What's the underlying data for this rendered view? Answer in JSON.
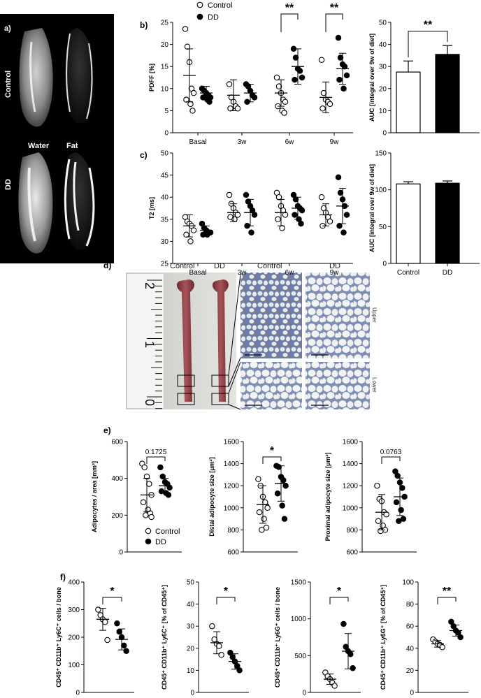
{
  "panel_a": {
    "label": "a)",
    "row_labels": [
      "Control",
      "DD"
    ],
    "column_labels": [
      "Water",
      "Fat"
    ]
  },
  "panel_d": {
    "label": "d)",
    "photo_labels": [
      "Control",
      "DD"
    ],
    "histo_col_labels": [
      "Control",
      "DD"
    ],
    "histo_row_labels": [
      "Upper",
      "Lower"
    ],
    "ruler_labels": [
      "2",
      "1",
      "0"
    ]
  },
  "legend": {
    "series": [
      "Control",
      "DD"
    ]
  },
  "chart_data": [
    {
      "id": "b-left",
      "panel_label": "b)",
      "type": "scatter",
      "ylabel": "PDFF [%]",
      "ylim": [
        0,
        25
      ],
      "yticks": [
        0,
        5,
        10,
        15,
        20,
        25
      ],
      "categories": [
        "Basal",
        "3w",
        "6w",
        "9w"
      ],
      "series": [
        {
          "name": "Control",
          "groups": [
            [
              23.5,
              19.5,
              16,
              10,
              9,
              7.5,
              6.5,
              5
            ],
            [
              11,
              8,
              7,
              6,
              5.5,
              5.5
            ],
            [
              12.5,
              10.5,
              9,
              7.5,
              7,
              6,
              5,
              4.5
            ],
            [
              16.5,
              9,
              7.5,
              7,
              6.5,
              5.5
            ]
          ],
          "means": [
            13,
            8.5,
            9,
            8
          ],
          "sds": [
            6,
            3.5,
            3,
            3.5
          ]
        },
        {
          "name": "DD",
          "groups": [
            [
              10,
              9.5,
              9,
              8.5,
              8,
              8,
              7.5,
              7
            ],
            [
              11,
              10.5,
              9.5,
              8.5,
              8,
              7
            ],
            [
              19,
              17,
              14.5,
              14,
              12.5,
              12
            ],
            [
              21.5,
              17,
              15.5,
              15,
              13,
              12,
              10
            ]
          ],
          "means": [
            9,
            9,
            15,
            14.5
          ],
          "sds": [
            1.5,
            2,
            4,
            3.5
          ]
        }
      ],
      "sig": [
        {
          "cat": 2,
          "text": "**"
        },
        {
          "cat": 3,
          "text": "**"
        }
      ]
    },
    {
      "id": "b-right",
      "type": "bar",
      "ylabel": "AUC [integral over 9w of diet]",
      "ylim": [
        0,
        50
      ],
      "yticks": [
        0,
        10,
        20,
        30,
        40,
        50
      ],
      "categories": [
        "Control",
        "DD"
      ],
      "values": [
        27.5,
        35.5
      ],
      "errors": [
        5,
        4
      ],
      "sig": [
        {
          "text": "**"
        }
      ]
    },
    {
      "id": "c-left",
      "panel_label": "c)",
      "type": "scatter",
      "ylabel": "T2 [ms]",
      "ylim": [
        25,
        50
      ],
      "yticks": [
        25,
        30,
        35,
        40,
        45,
        50
      ],
      "categories": [
        "Basal",
        "3w",
        "6w",
        "9w"
      ],
      "series": [
        {
          "name": "Control",
          "groups": [
            [
              35.5,
              34.5,
              34,
              33.5,
              32.5,
              31.5,
              30
            ],
            [
              40.5,
              38.5,
              37.5,
              36.5,
              36,
              35.5,
              35
            ],
            [
              41,
              40,
              38,
              37,
              36,
              35,
              33
            ],
            [
              40,
              37.5,
              36.5,
              35.5,
              34.5,
              33.5
            ]
          ],
          "means": [
            33.5,
            36.5,
            36.5,
            36
          ],
          "sds": [
            2.5,
            2,
            3,
            2.5
          ]
        },
        {
          "name": "DD",
          "groups": [
            [
              34,
              33,
              32.5,
              32,
              32,
              31.5,
              31.5
            ],
            [
              40.5,
              39,
              38,
              37,
              36,
              33.5,
              32
            ],
            [
              40.5,
              39.5,
              38,
              37.5,
              37,
              36,
              35,
              34
            ],
            [
              44.5,
              41,
              39.5,
              38,
              36,
              33.5,
              32
            ]
          ],
          "means": [
            32.5,
            36.5,
            37.5,
            38
          ],
          "sds": [
            1,
            3,
            2.5,
            4
          ]
        }
      ]
    },
    {
      "id": "c-right",
      "type": "bar",
      "ylabel": "AUC [integral over 9w of diet]",
      "ylim": [
        0,
        150
      ],
      "yticks": [
        0,
        50,
        100,
        150
      ],
      "categories": [
        "Control",
        "DD"
      ],
      "values": [
        108,
        109
      ],
      "errors": [
        3,
        3
      ]
    },
    {
      "id": "e-1",
      "panel_label": "e)",
      "type": "scatter",
      "ylabel": "Adipocytes / area [mm²]",
      "ylim": [
        0,
        600
      ],
      "yticks": [
        0,
        200,
        400,
        600
      ],
      "categories": [
        "Control",
        "DD"
      ],
      "series": [
        {
          "name": "Control",
          "groups": [
            [
              480,
              460,
              410,
              370,
              310,
              270,
              230,
              210,
              200,
              190
            ]
          ],
          "means": [
            310
          ],
          "sds": [
            90
          ]
        },
        {
          "name": "DD",
          "groups": [
            [
              460,
              410,
              380,
              370,
              350,
              330,
              320,
              310
            ]
          ],
          "means": [
            360
          ],
          "sds": [
            40
          ]
        }
      ],
      "pvalue": "0.1725",
      "legend": true
    },
    {
      "id": "e-2",
      "type": "scatter",
      "ylabel": "Distal adipocyte size [μm²]",
      "ylim": [
        600,
        1600
      ],
      "yticks": [
        600,
        800,
        1000,
        1200,
        1400,
        1600
      ],
      "categories": [
        "Control",
        "DD"
      ],
      "series": [
        {
          "name": "Control",
          "groups": [
            [
              1260,
              1200,
              1100,
              1050,
              1000,
              960,
              900,
              820,
              800
            ]
          ],
          "means": [
            1030
          ],
          "sds": [
            170
          ]
        },
        {
          "name": "DD",
          "groups": [
            [
              1380,
              1370,
              1280,
              1250,
              1200,
              1130,
              1020,
              900
            ]
          ],
          "means": [
            1220
          ],
          "sds": [
            160
          ]
        }
      ],
      "pvalue": "*"
    },
    {
      "id": "e-3",
      "type": "scatter",
      "ylabel": "Proximal adipocyte size [μm²]",
      "ylim": [
        600,
        1600
      ],
      "yticks": [
        600,
        800,
        1000,
        1200,
        1400,
        1600
      ],
      "categories": [
        "Control",
        "DD"
      ],
      "series": [
        {
          "name": "Control",
          "groups": [
            [
              1200,
              1080,
              1060,
              960,
              940,
              880,
              840,
              800,
              790
            ]
          ],
          "means": [
            960
          ],
          "sds": [
            160
          ]
        },
        {
          "name": "DD",
          "groups": [
            [
              1330,
              1290,
              1230,
              1180,
              1100,
              1050,
              980,
              900,
              880
            ]
          ],
          "means": [
            1100
          ],
          "sds": [
            170
          ]
        }
      ],
      "pvalue": "0.0763"
    },
    {
      "id": "f-1",
      "panel_label": "f)",
      "type": "scatter",
      "ylabel": "CD45⁺ CD11b⁺ Ly6C⁺ cells / bone",
      "ylim": [
        0,
        400
      ],
      "yticks": [
        0,
        100,
        200,
        300,
        400
      ],
      "categories": [
        "Control",
        "DD"
      ],
      "series": [
        {
          "name": "Control",
          "groups": [
            [
              300,
              280,
              265,
              255,
              190
            ]
          ],
          "means": [
            265
          ],
          "sds": [
            40
          ]
        },
        {
          "name": "DD",
          "groups": [
            [
              250,
              220,
              200,
              170,
              150
            ]
          ],
          "means": [
            192
          ],
          "sds": [
            38
          ]
        }
      ],
      "sig": "*"
    },
    {
      "id": "f-2",
      "type": "scatter",
      "ylabel": "CD45⁺ CD11b⁺ Ly6C⁺ [% of CD45⁺]",
      "ylim": [
        0,
        50
      ],
      "yticks": [
        0,
        10,
        20,
        30,
        40,
        50
      ],
      "categories": [
        "Control",
        "DD"
      ],
      "series": [
        {
          "name": "Control",
          "groups": [
            [
              30,
              24,
              22,
              21,
              17
            ]
          ],
          "means": [
            22.5
          ],
          "sds": [
            5
          ]
        },
        {
          "name": "DD",
          "groups": [
            [
              18,
              16,
              14,
              12,
              10
            ]
          ],
          "means": [
            14
          ],
          "sds": [
            3.5
          ]
        }
      ],
      "sig": "*"
    },
    {
      "id": "f-3",
      "type": "scatter",
      "ylabel": "CD45⁺ CD11b⁺ Ly6G⁺ cells / bone",
      "ylim": [
        0,
        1500
      ],
      "yticks": [
        0,
        500,
        1000,
        1500
      ],
      "categories": [
        "Control",
        "DD"
      ],
      "series": [
        {
          "name": "Control",
          "groups": [
            [
              270,
              220,
              180,
              130,
              90
            ]
          ],
          "means": [
            180
          ],
          "sds": [
            70
          ]
        },
        {
          "name": "DD",
          "groups": [
            [
              930,
              620,
              560,
              520,
              330
            ]
          ],
          "means": [
            560
          ],
          "sds": [
            240
          ]
        }
      ],
      "sig": "*"
    },
    {
      "id": "f-4",
      "type": "scatter",
      "ylabel": "CD45⁺ CD11b⁺ Ly6G⁺ [% of CD45⁺]",
      "ylim": [
        0,
        100
      ],
      "yticks": [
        0,
        20,
        40,
        60,
        80,
        100
      ],
      "categories": [
        "Control",
        "DD"
      ],
      "series": [
        {
          "name": "Control",
          "groups": [
            [
              48,
              46,
              44,
              43,
              41
            ]
          ],
          "means": [
            44
          ],
          "sds": [
            3
          ]
        },
        {
          "name": "DD",
          "groups": [
            [
              64,
              60,
              56,
              54,
              50
            ]
          ],
          "means": [
            56
          ],
          "sds": [
            5
          ]
        }
      ],
      "sig": "**"
    }
  ]
}
